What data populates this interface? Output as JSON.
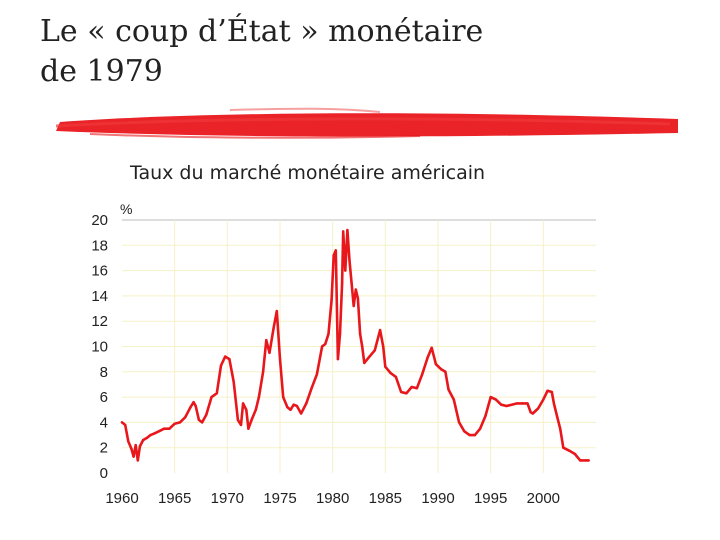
{
  "slide": {
    "title_line1": "Le « coup d’État » monétaire",
    "title_line2": "de 1979"
  },
  "colors": {
    "accent": "#e8171b",
    "grid": "#f5f1c8",
    "top_line": "#bbbbbb",
    "text": "#222222"
  },
  "chart_data": {
    "type": "line",
    "title": "Taux du marché monétaire américain",
    "ylabel": "%",
    "xlabel": "",
    "xlim": [
      1960,
      2005
    ],
    "ylim": [
      0,
      20
    ],
    "grid": true,
    "xticks": [
      1960,
      1965,
      1970,
      1975,
      1980,
      1985,
      1990,
      1995,
      2000
    ],
    "yticks": [
      0,
      2,
      4,
      6,
      8,
      10,
      12,
      14,
      16,
      18,
      20
    ],
    "series": [
      {
        "color": "#e8171b",
        "points": [
          [
            1960.0,
            4.0
          ],
          [
            1960.3,
            3.8
          ],
          [
            1960.6,
            2.5
          ],
          [
            1960.9,
            1.9
          ],
          [
            1961.1,
            1.3
          ],
          [
            1961.3,
            2.2
          ],
          [
            1961.5,
            1.0
          ],
          [
            1961.7,
            2.1
          ],
          [
            1962.0,
            2.6
          ],
          [
            1962.4,
            2.8
          ],
          [
            1962.7,
            3.0
          ],
          [
            1963.0,
            3.1
          ],
          [
            1963.5,
            3.3
          ],
          [
            1964.0,
            3.5
          ],
          [
            1964.5,
            3.5
          ],
          [
            1965.0,
            3.9
          ],
          [
            1965.5,
            4.0
          ],
          [
            1966.0,
            4.4
          ],
          [
            1966.5,
            5.2
          ],
          [
            1966.8,
            5.6
          ],
          [
            1967.0,
            5.3
          ],
          [
            1967.3,
            4.2
          ],
          [
            1967.6,
            4.0
          ],
          [
            1968.0,
            4.6
          ],
          [
            1968.5,
            6.0
          ],
          [
            1969.0,
            6.3
          ],
          [
            1969.4,
            8.5
          ],
          [
            1969.8,
            9.2
          ],
          [
            1970.2,
            9.0
          ],
          [
            1970.6,
            7.2
          ],
          [
            1971.0,
            4.2
          ],
          [
            1971.3,
            3.8
          ],
          [
            1971.5,
            5.5
          ],
          [
            1971.8,
            5.0
          ],
          [
            1972.0,
            3.5
          ],
          [
            1972.3,
            4.2
          ],
          [
            1972.7,
            5.0
          ],
          [
            1973.0,
            6.0
          ],
          [
            1973.4,
            8.0
          ],
          [
            1973.7,
            10.5
          ],
          [
            1974.0,
            9.5
          ],
          [
            1974.4,
            11.5
          ],
          [
            1974.7,
            12.8
          ],
          [
            1975.0,
            9.0
          ],
          [
            1975.3,
            6.0
          ],
          [
            1975.7,
            5.2
          ],
          [
            1976.0,
            5.0
          ],
          [
            1976.3,
            5.4
          ],
          [
            1976.6,
            5.3
          ],
          [
            1977.0,
            4.7
          ],
          [
            1977.5,
            5.5
          ],
          [
            1978.0,
            6.7
          ],
          [
            1978.5,
            7.8
          ],
          [
            1979.0,
            10.0
          ],
          [
            1979.3,
            10.2
          ],
          [
            1979.6,
            11.0
          ],
          [
            1979.9,
            13.7
          ],
          [
            1980.1,
            17.2
          ],
          [
            1980.3,
            17.6
          ],
          [
            1980.5,
            9.0
          ],
          [
            1980.7,
            11.0
          ],
          [
            1980.9,
            15.0
          ],
          [
            1981.0,
            19.1
          ],
          [
            1981.2,
            16.0
          ],
          [
            1981.4,
            19.2
          ],
          [
            1981.6,
            16.8
          ],
          [
            1981.8,
            15.0
          ],
          [
            1982.0,
            13.2
          ],
          [
            1982.2,
            14.5
          ],
          [
            1982.4,
            13.8
          ],
          [
            1982.6,
            11.0
          ],
          [
            1982.8,
            10.0
          ],
          [
            1983.0,
            8.7
          ],
          [
            1983.5,
            9.2
          ],
          [
            1984.0,
            9.7
          ],
          [
            1984.5,
            11.3
          ],
          [
            1984.8,
            10.0
          ],
          [
            1985.0,
            8.4
          ],
          [
            1985.5,
            7.9
          ],
          [
            1986.0,
            7.6
          ],
          [
            1986.5,
            6.4
          ],
          [
            1987.0,
            6.3
          ],
          [
            1987.5,
            6.8
          ],
          [
            1988.0,
            6.7
          ],
          [
            1988.5,
            7.8
          ],
          [
            1989.0,
            9.1
          ],
          [
            1989.4,
            9.9
          ],
          [
            1989.8,
            8.6
          ],
          [
            1990.3,
            8.2
          ],
          [
            1990.7,
            8.0
          ],
          [
            1991.0,
            6.6
          ],
          [
            1991.5,
            5.8
          ],
          [
            1992.0,
            4.0
          ],
          [
            1992.5,
            3.3
          ],
          [
            1993.0,
            3.0
          ],
          [
            1993.5,
            3.0
          ],
          [
            1994.0,
            3.5
          ],
          [
            1994.5,
            4.5
          ],
          [
            1995.0,
            6.0
          ],
          [
            1995.5,
            5.8
          ],
          [
            1996.0,
            5.4
          ],
          [
            1996.5,
            5.3
          ],
          [
            1997.0,
            5.4
          ],
          [
            1997.5,
            5.5
          ],
          [
            1998.0,
            5.5
          ],
          [
            1998.5,
            5.5
          ],
          [
            1998.8,
            4.8
          ],
          [
            1999.0,
            4.7
          ],
          [
            1999.5,
            5.1
          ],
          [
            2000.0,
            5.8
          ],
          [
            2000.4,
            6.5
          ],
          [
            2000.8,
            6.4
          ],
          [
            2001.0,
            5.5
          ],
          [
            2001.3,
            4.5
          ],
          [
            2001.6,
            3.5
          ],
          [
            2001.9,
            2.0
          ],
          [
            2002.5,
            1.75
          ],
          [
            2003.0,
            1.5
          ],
          [
            2003.5,
            1.0
          ],
          [
            2004.0,
            1.0
          ],
          [
            2004.3,
            1.0
          ]
        ]
      }
    ]
  }
}
